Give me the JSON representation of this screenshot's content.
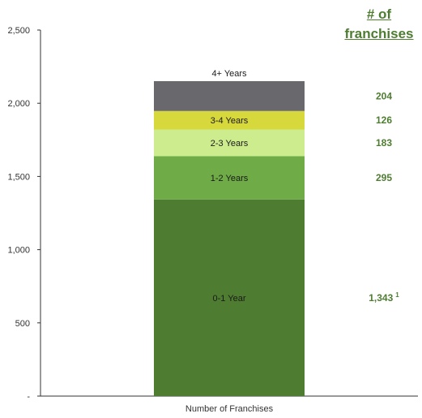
{
  "header": {
    "line1": "# of",
    "line2": "franchises",
    "color": "#4e7d31"
  },
  "chart_data": {
    "type": "bar",
    "stacked": true,
    "categories": [
      "Number of Franchises"
    ],
    "series": [
      {
        "name": "0-1 Year",
        "values": [
          1343
        ],
        "value_label": "1,343",
        "footnote": "1",
        "color": "#4e7d31"
      },
      {
        "name": "1-2 Years",
        "values": [
          295
        ],
        "value_label": "295",
        "color": "#6fab47"
      },
      {
        "name": "2-3 Years",
        "values": [
          183
        ],
        "value_label": "183",
        "color": "#cdec8e"
      },
      {
        "name": "3-4 Years",
        "values": [
          126
        ],
        "value_label": "126",
        "color": "#d7d83b"
      },
      {
        "name": "4+ Years",
        "values": [
          204
        ],
        "value_label": "204",
        "color": "#69686d"
      }
    ],
    "ylim": [
      0,
      2500
    ],
    "yticks": [
      0,
      500,
      1000,
      1500,
      2000,
      2500
    ],
    "ytick_labels": [
      "-",
      "500",
      "1,000",
      "1,500",
      "2,000",
      "2,500"
    ],
    "value_label_color": "#4e7d31",
    "grid": false,
    "title": "",
    "xlabel": "",
    "ylabel": ""
  }
}
